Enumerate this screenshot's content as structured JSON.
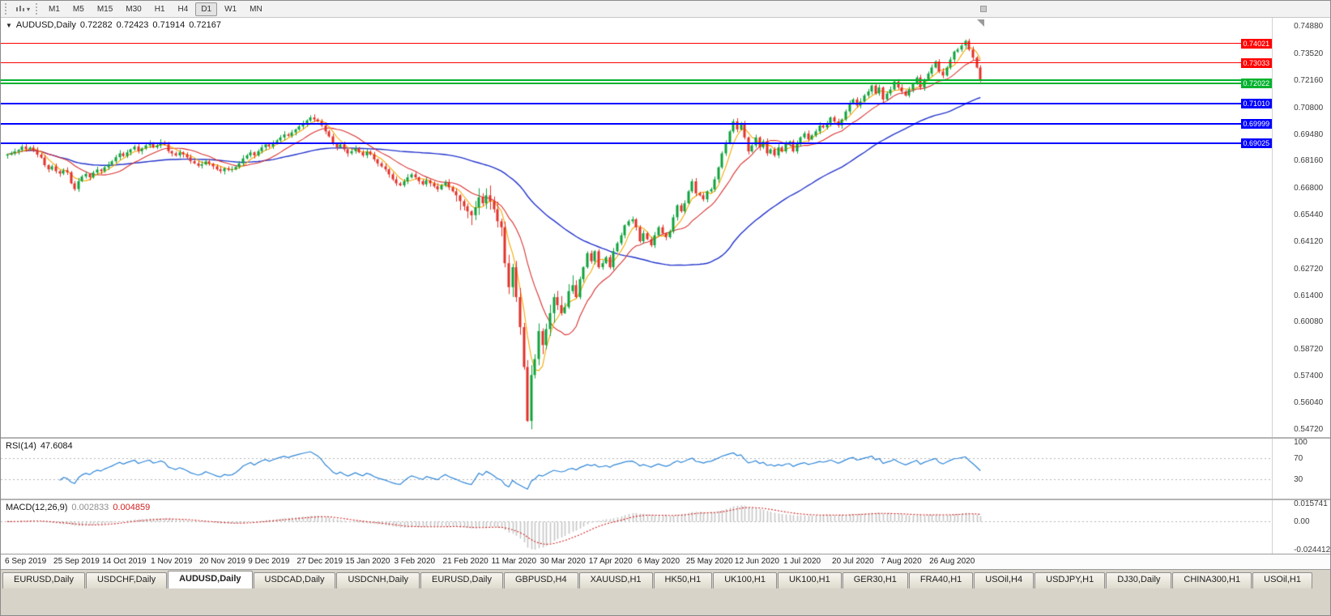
{
  "toolbar": {
    "timeframes": [
      "M1",
      "M5",
      "M15",
      "M30",
      "H1",
      "H4",
      "D1",
      "W1",
      "MN"
    ],
    "active_timeframe": "D1"
  },
  "price_pane": {
    "header": {
      "arrow": "▼",
      "symbol": "AUDUSD,Daily",
      "open": "0.72282",
      "high": "0.72423",
      "low": "0.71914",
      "close": "0.72167"
    },
    "axis_ticks": [
      "0.74880",
      "0.73520",
      "0.72160",
      "0.70800",
      "0.69480",
      "0.68160",
      "0.66800",
      "0.65440",
      "0.64120",
      "0.62720",
      "0.61400",
      "0.60080",
      "0.58720",
      "0.57400",
      "0.56040",
      "0.54720"
    ],
    "levels": [
      {
        "price": "0.74021",
        "value": 0.74021,
        "color": "#FF0000",
        "width": 1,
        "label": true
      },
      {
        "price": "0.73033",
        "value": 0.73033,
        "color": "#FF0000",
        "width": 1,
        "label": true
      },
      {
        "price": "0.72160",
        "value": 0.7216,
        "color": "#00B22D",
        "width": 2,
        "label": false
      },
      {
        "price": "0.72022",
        "value": 0.72022,
        "color": "#00B22D",
        "width": 2,
        "label": true
      },
      {
        "price": "0.71010",
        "value": 0.7101,
        "color": "#0000FF",
        "width": 2,
        "label": true
      },
      {
        "price": "0.69999",
        "value": 0.69999,
        "color": "#0000FF",
        "width": 2,
        "label": true
      },
      {
        "price": "0.69025",
        "value": 0.69025,
        "color": "#0000FF",
        "width": 2,
        "label": true
      }
    ]
  },
  "rsi_pane": {
    "name": "RSI(14)",
    "value": "47.6084",
    "axis_labels": [
      {
        "text": "100",
        "value": 100
      },
      {
        "text": "70",
        "value": 70
      },
      {
        "text": "30",
        "value": 30
      }
    ],
    "levels": [
      70,
      30
    ]
  },
  "macd_pane": {
    "name": "MACD(12,26,9)",
    "main_value": "0.002833",
    "signal_value": "0.004859",
    "axis_labels": [
      {
        "text": "0.015741",
        "value": 0.015741
      },
      {
        "text": "0.00",
        "value": 0
      },
      {
        "text": "-0.024412",
        "value": -0.024412
      }
    ],
    "range": {
      "max": 0.015741,
      "min": -0.024412
    }
  },
  "date_axis": {
    "labels": [
      "6 Sep 2019",
      "25 Sep 2019",
      "14 Oct 2019",
      "1 Nov 2019",
      "20 Nov 2019",
      "9 Dec 2019",
      "27 Dec 2019",
      "15 Jan 2020",
      "3 Feb 2020",
      "21 Feb 2020",
      "11 Mar 2020",
      "30 Mar 2020",
      "17 Apr 2020",
      "6 May 2020",
      "25 May 2020",
      "12 Jun 2020",
      "1 Jul 2020",
      "20 Jul 2020",
      "7 Aug 2020",
      "26 Aug 2020"
    ]
  },
  "tabs": {
    "active_index": 2,
    "items": [
      {
        "label": "EURUSD,Daily"
      },
      {
        "label": "USDCHF,Daily"
      },
      {
        "label": "AUDUSD,Daily"
      },
      {
        "label": "USDCAD,Daily"
      },
      {
        "label": "USDCNH,Daily"
      },
      {
        "label": "EURUSD,Daily"
      },
      {
        "label": "GBPUSD,H4"
      },
      {
        "label": "XAUUSD,H1"
      },
      {
        "label": "HK50,H1"
      },
      {
        "label": "UK100,H1"
      },
      {
        "label": "UK100,H1"
      },
      {
        "label": "GER30,H1"
      },
      {
        "label": "FRA40,H1"
      },
      {
        "label": "USOil,H4"
      },
      {
        "label": "USDJPY,H1"
      },
      {
        "label": "DJ30,Daily"
      },
      {
        "label": "CHINA300,H1"
      },
      {
        "label": "USOil,H1"
      }
    ]
  },
  "colors": {
    "candle_up": "#0fa33c",
    "candle_down": "#e2322a",
    "ma_fast": "#f5a800",
    "ma_mid": "#d93030",
    "ma_slow": "#2233cc",
    "rsi_line": "#2e86d7",
    "macd_hist": "#c6c6c6",
    "macd_signal": "#d02020",
    "level_red": "#FF0000",
    "level_green": "#00B22D",
    "level_blue": "#0000FF"
  },
  "chart_data": {
    "type": "candlestick",
    "title": "AUDUSD,Daily",
    "symbol": "AUDUSD",
    "timeframe": "Daily",
    "current_bar": {
      "open": 0.72282,
      "high": 0.72423,
      "low": 0.71914,
      "close": 0.72167
    },
    "ylim": [
      0.543,
      0.753
    ],
    "bars_per_date_label": 13,
    "first_open": 0.684,
    "volatile_range": [
      125,
      152
    ],
    "low_overrides": {
      "139": 0.5506
    },
    "high_overrides": {
      "256": 0.7421
    },
    "moving_averages": [
      {
        "period": 5
      },
      {
        "period": 14
      },
      {
        "period": 55
      }
    ],
    "indicators": [
      {
        "name": "RSI",
        "period": 14,
        "current": 47.6084
      },
      {
        "name": "MACD",
        "fast": 12,
        "slow": 26,
        "signal": 9,
        "current_main": 0.002833,
        "current_signal": 0.004859
      }
    ],
    "closes": [
      0.6846,
      0.6852,
      0.6861,
      0.6868,
      0.6885,
      0.6872,
      0.688,
      0.6866,
      0.6845,
      0.683,
      0.6792,
      0.6771,
      0.6786,
      0.6762,
      0.675,
      0.6766,
      0.6756,
      0.6701,
      0.6672,
      0.6712,
      0.6735,
      0.6748,
      0.6731,
      0.6755,
      0.677,
      0.6762,
      0.6781,
      0.6795,
      0.6811,
      0.6832,
      0.6851,
      0.6838,
      0.6856,
      0.6871,
      0.6885,
      0.6862,
      0.6876,
      0.6891,
      0.6901,
      0.6881,
      0.6891,
      0.6906,
      0.6896,
      0.6862,
      0.6851,
      0.6841,
      0.6856,
      0.6846,
      0.6831,
      0.6812,
      0.6801,
      0.6789,
      0.6796,
      0.6811,
      0.6799,
      0.6786,
      0.6771,
      0.6762,
      0.6776,
      0.6769,
      0.6771,
      0.6783,
      0.6801,
      0.6826,
      0.6841,
      0.6856,
      0.6841,
      0.6862,
      0.6881,
      0.6896,
      0.6886,
      0.6901,
      0.6916,
      0.6931,
      0.6946,
      0.6939,
      0.6956,
      0.6971,
      0.6986,
      0.7001,
      0.7016,
      0.7031,
      0.7021,
      0.7011,
      0.6991,
      0.6961,
      0.6936,
      0.6901,
      0.6881,
      0.6896,
      0.6871,
      0.6851,
      0.6862,
      0.6876,
      0.6856,
      0.6841,
      0.6859,
      0.6846,
      0.6821,
      0.6801,
      0.6786,
      0.6771,
      0.6746,
      0.6721,
      0.6701,
      0.6691,
      0.6711,
      0.6731,
      0.6746,
      0.6731,
      0.6712,
      0.6696,
      0.6716,
      0.6701,
      0.6686,
      0.6671,
      0.6691,
      0.6706,
      0.6681,
      0.6661,
      0.6641,
      0.6612,
      0.6586,
      0.6561,
      0.6541,
      0.6581,
      0.6631,
      0.6601,
      0.6641,
      0.6611,
      0.6571,
      0.6511,
      0.6481,
      0.6301,
      0.6181,
      0.6281,
      0.6131,
      0.5981,
      0.5781,
      0.5511,
      0.5741,
      0.5821,
      0.5961,
      0.5891,
      0.5971,
      0.6051,
      0.6131,
      0.6091,
      0.6051,
      0.6081,
      0.6161,
      0.6191,
      0.6131,
      0.6221,
      0.6281,
      0.6351,
      0.6311,
      0.6361,
      0.6281,
      0.6301,
      0.6331,
      0.6281,
      0.6361,
      0.6401,
      0.6441,
      0.6491,
      0.6511,
      0.6521,
      0.6481,
      0.6411,
      0.6451,
      0.6421,
      0.6391,
      0.6441,
      0.6481,
      0.6451,
      0.6431,
      0.6461,
      0.6531,
      0.6591,
      0.6561,
      0.6601,
      0.6661,
      0.6711,
      0.6651,
      0.6641,
      0.6621,
      0.6661,
      0.6671,
      0.6721,
      0.6781,
      0.6851,
      0.6901,
      0.6961,
      0.7011,
      0.6971,
      0.7001,
      0.6931,
      0.6861,
      0.6891,
      0.6931,
      0.6881,
      0.6911,
      0.6851,
      0.6871,
      0.6841,
      0.6881,
      0.6861,
      0.6901,
      0.6911,
      0.6861,
      0.6901,
      0.6931,
      0.6951,
      0.6921,
      0.6941,
      0.6961,
      0.6991,
      0.6981,
      0.7001,
      0.7031,
      0.7011,
      0.6991,
      0.7021,
      0.7061,
      0.7101,
      0.7121,
      0.7091,
      0.7111,
      0.7141,
      0.7161,
      0.7191,
      0.7151,
      0.7181,
      0.7121,
      0.7151,
      0.7171,
      0.7211,
      0.7181,
      0.7161,
      0.7141,
      0.7171,
      0.7201,
      0.7231,
      0.7181,
      0.7221,
      0.7251,
      0.7281,
      0.7311,
      0.7261,
      0.7241,
      0.7281,
      0.7321,
      0.7361,
      0.7371,
      0.7391,
      0.7414,
      0.7371,
      0.7331,
      0.7281,
      0.72167
    ]
  }
}
